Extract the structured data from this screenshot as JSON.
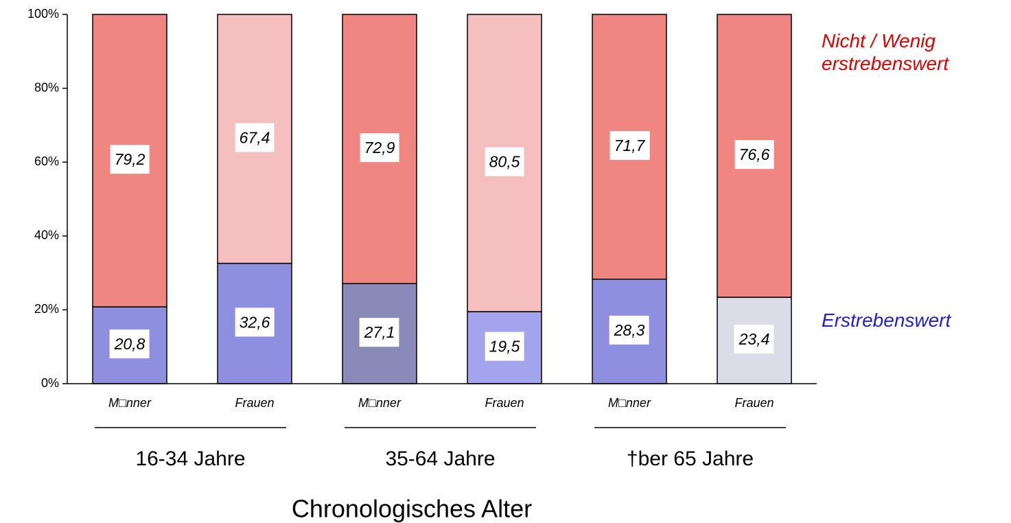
{
  "chart_data": {
    "type": "stacked_bar",
    "categories": [
      "M□nner",
      "Frauen",
      "M□nner",
      "Frauen",
      "M□nner",
      "Frauen"
    ],
    "groups": [
      "16-34 Jahre",
      "35-64 Jahre",
      "†ber 65 Jahre"
    ],
    "x_label": "Chronologisches Alter",
    "ylim": [
      0,
      100
    ],
    "yticks": [
      {
        "value": 0,
        "label": "0%"
      },
      {
        "value": 20,
        "label": "20%"
      },
      {
        "value": 40,
        "label": "40%"
      },
      {
        "value": 60,
        "label": "60%"
      },
      {
        "value": 80,
        "label": "80%"
      },
      {
        "value": 100,
        "label": "100%"
      }
    ],
    "series": [
      {
        "name": "Erstrebenswert",
        "color": "#2020d0",
        "colors": [
          "#8f8fe0",
          "#8f8fe0",
          "#8a8ab8",
          "#a3a3ee",
          "#8f8fe0",
          "#dcdce8"
        ],
        "values": [
          20.8,
          32.6,
          27.1,
          19.5,
          28.3,
          23.4
        ],
        "value_labels": [
          "20,8",
          "32,6",
          "27,1",
          "19,5",
          "28,3",
          "23,4"
        ]
      },
      {
        "name": "Nicht / Wenig erstrebenswert",
        "color": "#e00000",
        "colors": [
          "#f08682",
          "#f5bfc0",
          "#f08682",
          "#f5bfc0",
          "#f08682",
          "#f08682"
        ],
        "values": [
          79.2,
          67.4,
          72.9,
          80.5,
          71.7,
          76.6
        ],
        "value_labels": [
          "79,2",
          "67,4",
          "72,9",
          "80,5",
          "71,7",
          "76,6"
        ]
      }
    ]
  }
}
